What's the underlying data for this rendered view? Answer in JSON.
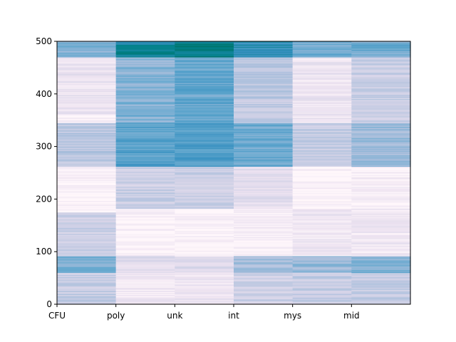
{
  "chart_data": {
    "type": "heatmap",
    "title": "",
    "xlabel": "",
    "ylabel": "",
    "x_tick_labels": [
      "CFU",
      "poly",
      "unk",
      "int",
      "mys",
      "mid"
    ],
    "y_ticks": [
      0,
      100,
      200,
      300,
      400,
      500
    ],
    "ylim": [
      0,
      500
    ],
    "columns": 6,
    "rows": 500,
    "colormap": "PuBuGn",
    "value_range": [
      0,
      1
    ],
    "grid": false,
    "colorbar": false,
    "bands": [
      {
        "column": "CFU",
        "segments": [
          [
            0,
            60,
            0.32
          ],
          [
            60,
            92,
            0.52
          ],
          [
            92,
            175,
            0.3
          ],
          [
            175,
            262,
            0.03
          ],
          [
            262,
            345,
            0.36
          ],
          [
            345,
            360,
            0.05
          ],
          [
            360,
            470,
            0.15
          ],
          [
            470,
            500,
            0.5
          ]
        ]
      },
      {
        "column": "poly",
        "segments": [
          [
            0,
            60,
            0.1
          ],
          [
            60,
            92,
            0.2
          ],
          [
            92,
            182,
            0.03
          ],
          [
            182,
            262,
            0.3
          ],
          [
            262,
            345,
            0.62
          ],
          [
            345,
            470,
            0.5
          ],
          [
            470,
            500,
            0.82
          ]
        ]
      },
      {
        "column": "unk",
        "segments": [
          [
            0,
            60,
            0.12
          ],
          [
            60,
            92,
            0.22
          ],
          [
            92,
            182,
            0.04
          ],
          [
            182,
            262,
            0.3
          ],
          [
            262,
            345,
            0.65
          ],
          [
            345,
            470,
            0.58
          ],
          [
            470,
            500,
            0.88
          ]
        ]
      },
      {
        "column": "int",
        "segments": [
          [
            0,
            60,
            0.28
          ],
          [
            60,
            92,
            0.42
          ],
          [
            92,
            182,
            0.06
          ],
          [
            182,
            262,
            0.18
          ],
          [
            262,
            345,
            0.56
          ],
          [
            345,
            470,
            0.35
          ],
          [
            470,
            500,
            0.72
          ]
        ]
      },
      {
        "column": "mys",
        "segments": [
          [
            0,
            60,
            0.32
          ],
          [
            60,
            92,
            0.45
          ],
          [
            92,
            182,
            0.12
          ],
          [
            182,
            262,
            0.04
          ],
          [
            262,
            345,
            0.32
          ],
          [
            345,
            470,
            0.12
          ],
          [
            470,
            500,
            0.55
          ]
        ]
      },
      {
        "column": "mid",
        "segments": [
          [
            0,
            60,
            0.32
          ],
          [
            60,
            92,
            0.52
          ],
          [
            92,
            182,
            0.1
          ],
          [
            182,
            262,
            0.06
          ],
          [
            262,
            345,
            0.45
          ],
          [
            345,
            470,
            0.3
          ],
          [
            470,
            500,
            0.55
          ]
        ]
      }
    ]
  },
  "colors": {
    "axes": "#000000",
    "background": "#ffffff",
    "colormap_stops": [
      "#fff7fb",
      "#ece2f0",
      "#d0d1e6",
      "#a6bddb",
      "#67a9cf",
      "#3690c0",
      "#02818a",
      "#016c59"
    ]
  }
}
